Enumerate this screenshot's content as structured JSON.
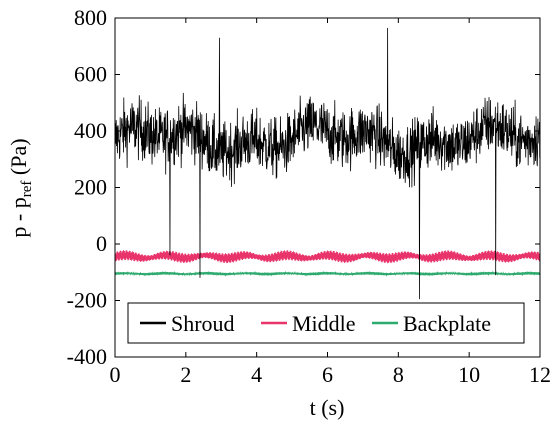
{
  "chart_data": {
    "type": "line",
    "xlabel": "t (s)",
    "ylabel_main": "p - p",
    "ylabel_sub": "ref",
    "ylabel_unit": " (Pa)",
    "xlim": [
      0,
      12
    ],
    "ylim": [
      -400,
      800
    ],
    "xticks": [
      "0",
      "2",
      "4",
      "6",
      "8",
      "10",
      "12"
    ],
    "yticks": [
      "-400",
      "-200",
      "0",
      "200",
      "400",
      "600",
      "800"
    ],
    "grid": false,
    "legend_position": "bottom",
    "series": [
      {
        "name": "Shroud",
        "color": "#000000",
        "signal": "noisy",
        "mean": 370,
        "spread": 150,
        "min_range": 80,
        "max_range": 660,
        "spikes": [
          {
            "t": 2.4,
            "p": -120
          },
          {
            "t": 2.95,
            "p": 730
          },
          {
            "t": 7.7,
            "p": 765
          },
          {
            "t": 8.6,
            "p": -195
          },
          {
            "t": 10.75,
            "p": -110
          },
          {
            "t": 1.55,
            "p": -40
          }
        ]
      },
      {
        "name": "Middle",
        "color": "#e8336b",
        "signal": "oscillating",
        "mean": -45,
        "amplitude": 18
      },
      {
        "name": "Backplate",
        "color": "#2eaa6e",
        "signal": "oscillating",
        "mean": -105,
        "amplitude": 5
      }
    ]
  }
}
